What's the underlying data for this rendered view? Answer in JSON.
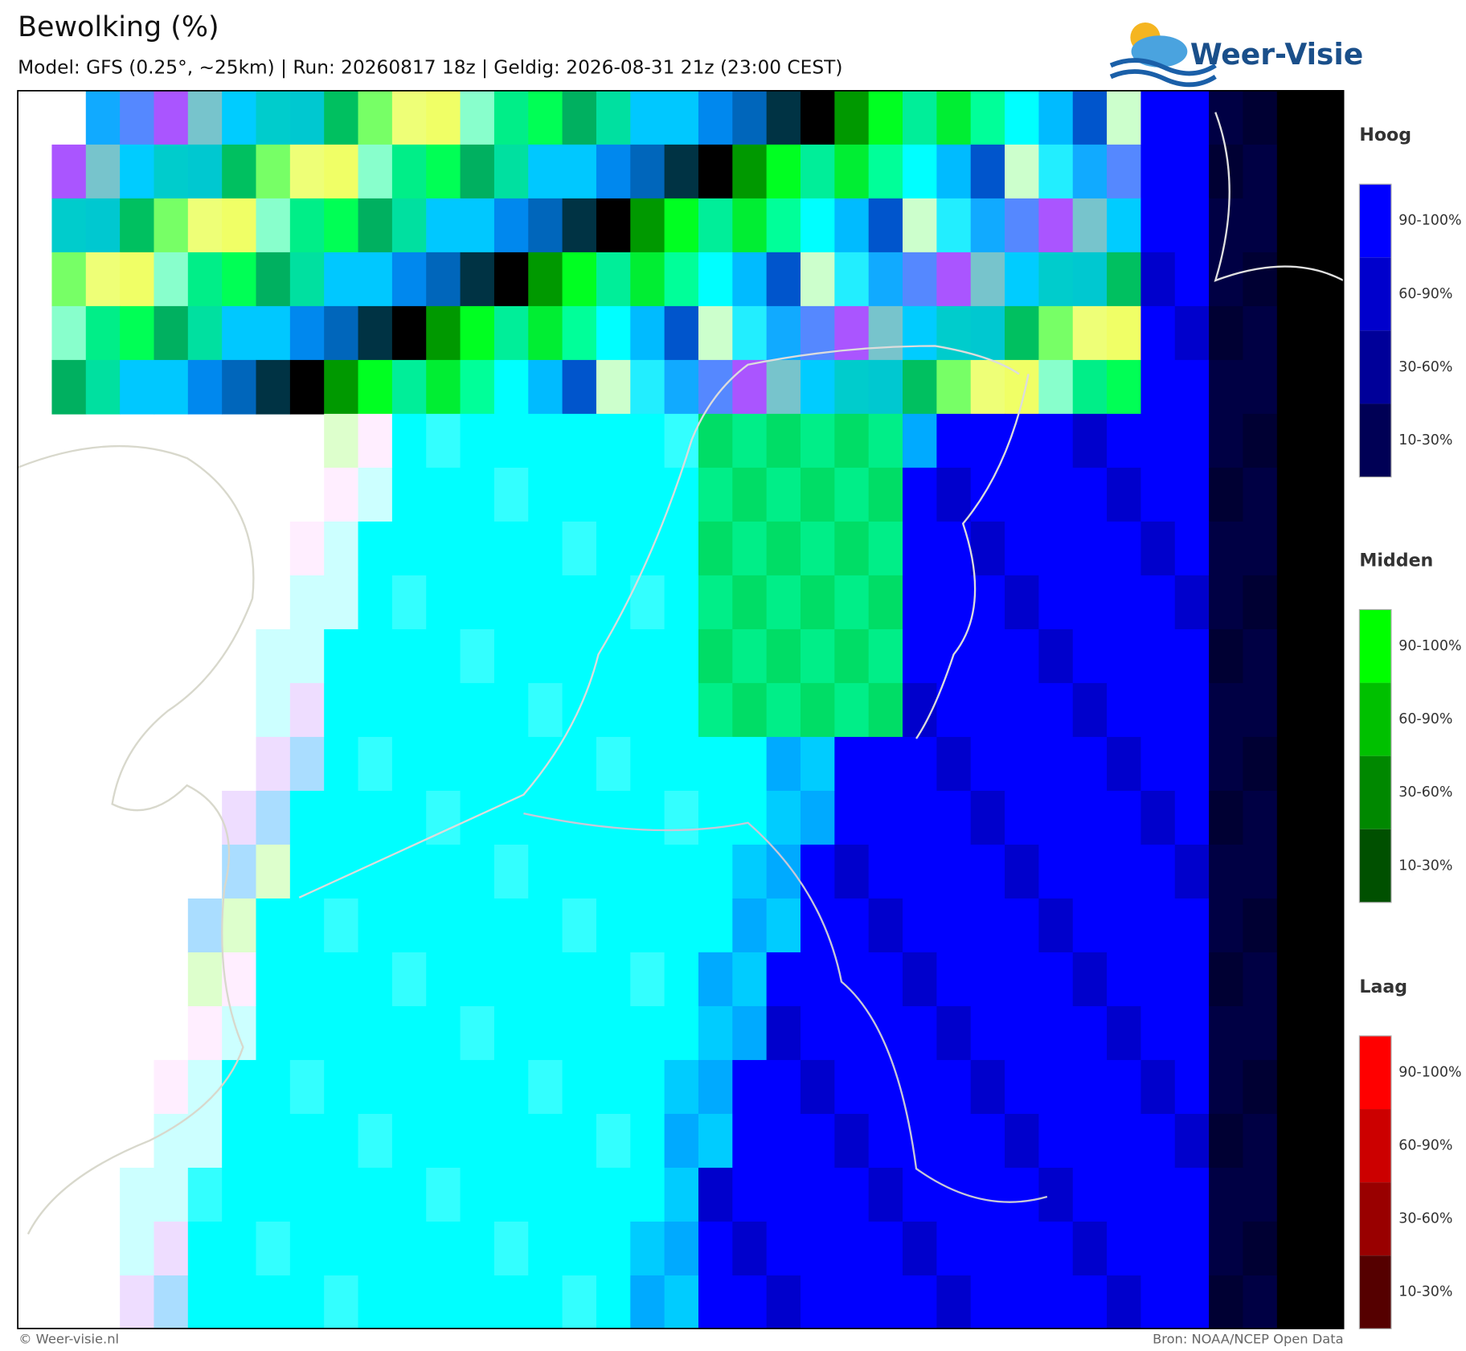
{
  "header": {
    "title": "Bewolking (%)",
    "subtitle": "Model: GFS (0.25°, ~25km)  |  Run: 20260817 18z  |  Geldig: 2026-08-31 21z (23:00 CEST)"
  },
  "logo": {
    "text": "Weer-Visie"
  },
  "legend": [
    {
      "title": "Hoog",
      "items": [
        "90-100%",
        "60-90%",
        "30-60%",
        "10-30%"
      ],
      "colors": [
        "#0000ff",
        "#0000cc",
        "#000099",
        "#000055"
      ]
    },
    {
      "title": "Midden",
      "items": [
        "90-100%",
        "60-90%",
        "30-60%",
        "10-30%"
      ],
      "colors": [
        "#00ff00",
        "#00c000",
        "#008800",
        "#005000"
      ]
    },
    {
      "title": "Laag",
      "items": [
        "90-100%",
        "60-90%",
        "30-60%",
        "10-30%"
      ],
      "colors": [
        "#ff0000",
        "#cc0000",
        "#990000",
        "#550000"
      ]
    }
  ],
  "footer": {
    "credit": "© Weer-visie.nl",
    "source": "Bron: NOAA/NCEP Open Data"
  }
}
